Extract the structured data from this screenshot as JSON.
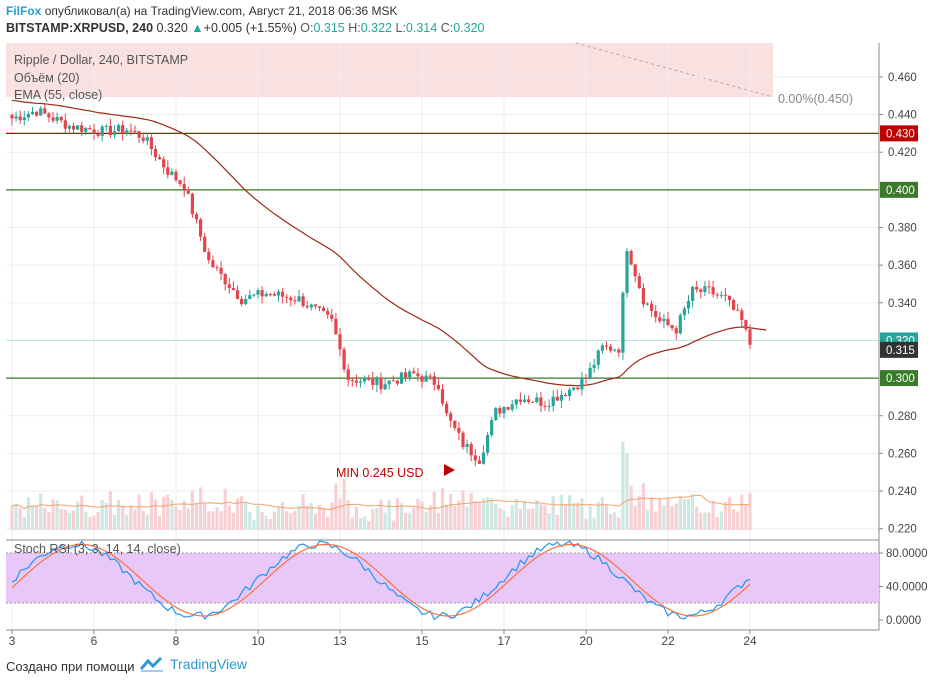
{
  "header": {
    "author": "FilFox",
    "published_text": "опубликовал(а) на TradingView.com, Август 21, 2018 06:36 MSK",
    "symbol": "BITSTAMP:XRPUSD, 240",
    "last": "0.320",
    "change": "+0.005 (+1.55%)",
    "open_label": "O:",
    "open": "0.315",
    "high_label": "H:",
    "high": "0.322",
    "low_label": "L:",
    "low": "0.314",
    "close_label": "C:",
    "close": "0.320"
  },
  "legend": {
    "title": "Ripple / Dollar, 240, BITSTAMP",
    "volume": "Объём (20)",
    "ema": "EMA (55, close)"
  },
  "annotations": {
    "min_label": "MIN 0.245 USD",
    "fib_label": "0.00%(0.450)"
  },
  "rsi": {
    "label": "Stoch RSI (3, 3, 14, 14, close)"
  },
  "footer": {
    "created_with": "Создано при помощи",
    "brand": "TradingView"
  },
  "colors": {
    "up": "#26a69a",
    "down": "#ef5350",
    "candle_up": "#26a69a",
    "candle_down": "#e2454d",
    "ema": "#9c2a16",
    "red_line": "#c00000",
    "green_line": "#3a7a2a",
    "rsi_fill": "#e8c8f8"
  },
  "chart_data": {
    "type": "candlestick",
    "price_axis": {
      "ticks": [
        "0.460",
        "0.440",
        "0.420",
        "0.380",
        "0.360",
        "0.340",
        "0.280",
        "0.260",
        "0.240",
        "0.220"
      ],
      "tick_values": [
        0.46,
        0.44,
        0.42,
        0.38,
        0.36,
        0.34,
        0.28,
        0.26,
        0.24,
        0.22
      ],
      "range": [
        0.214,
        0.478
      ]
    },
    "time_axis": {
      "labels": [
        "3",
        "6",
        "8",
        "10",
        "13",
        "15",
        "17",
        "20",
        "22",
        "24"
      ],
      "bar_index": [
        0,
        20,
        40,
        60,
        80,
        100,
        120,
        140,
        160,
        180
      ]
    },
    "levels": [
      {
        "label": "0.430",
        "value": 0.43,
        "color": "#c00000",
        "kind": "line"
      },
      {
        "label": "0.400",
        "value": 0.4,
        "color": "#3a7a2a",
        "kind": "line"
      },
      {
        "label": "0.300",
        "value": 0.3,
        "color": "#3a7a2a",
        "kind": "line"
      },
      {
        "label": "0.320",
        "value": 0.32,
        "color": "#26a69a",
        "kind": "price"
      },
      {
        "label": "0.315",
        "value": 0.315,
        "color": "#333333",
        "kind": "price"
      }
    ],
    "min_value": 0.245,
    "fib_value": 0.45,
    "rsi_axis": {
      "ticks": [
        "80.0000",
        "40.0000",
        "0.0000"
      ],
      "tick_values": [
        80,
        40,
        0
      ],
      "band": [
        20,
        80
      ]
    }
  }
}
